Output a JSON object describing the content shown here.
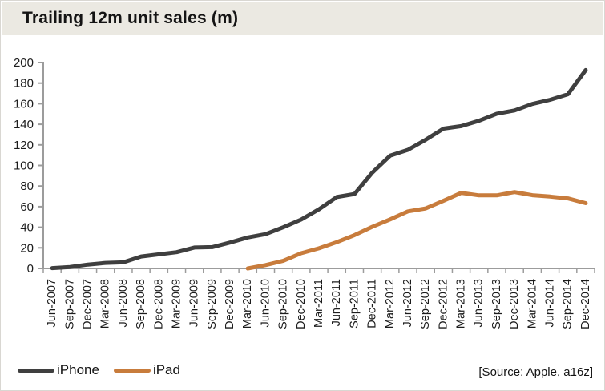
{
  "header": {
    "title": "Trailing 12m unit sales (m)"
  },
  "source_note": "[Source: Apple, a16z]",
  "legend": {
    "items": [
      {
        "label": "iPhone",
        "color": "#3f3f3f"
      },
      {
        "label": "iPad",
        "color": "#c87c3c"
      }
    ]
  },
  "colors": {
    "titlebar_bg": "#ebe9e2",
    "axis": "#9c9c9c",
    "iphone_line": "#3f3f3f",
    "ipad_line": "#c87c3c"
  },
  "chart_data": {
    "type": "line",
    "title": "Trailing 12m unit sales (m)",
    "xlabel": "",
    "ylabel": "",
    "ylim": [
      0,
      200
    ],
    "ytick_step": 20,
    "grid": false,
    "legend_position": "bottom-left",
    "categories": [
      "Jun-2007",
      "Sep-2007",
      "Dec-2007",
      "Mar-2008",
      "Jun-2008",
      "Sep-2008",
      "Dec-2008",
      "Mar-2009",
      "Jun-2009",
      "Sep-2009",
      "Dec-2009",
      "Mar-2010",
      "Jun-2010",
      "Sep-2010",
      "Dec-2010",
      "Mar-2011",
      "Jun-2011",
      "Sep-2011",
      "Dec-2011",
      "Mar-2012",
      "Jun-2012",
      "Sep-2012",
      "Dec-2012",
      "Mar-2013",
      "Jun-2013",
      "Sep-2013",
      "Dec-2013",
      "Mar-2014",
      "Jun-2014",
      "Sep-2014",
      "Dec-2014"
    ],
    "series": [
      {
        "name": "iPhone",
        "color": "#3f3f3f",
        "start_index": 0,
        "values": [
          0.3,
          1.4,
          3.7,
          5.4,
          5.9,
          11.6,
          13.7,
          15.8,
          20.3,
          20.7,
          25.1,
          30.1,
          33.3,
          40.0,
          47.5,
          57.4,
          69.3,
          72.3,
          93.1,
          109.5,
          115.2,
          125.0,
          135.8,
          138.2,
          143.4,
          150.3,
          153.5,
          159.8,
          163.8,
          169.2,
          192.7
        ]
      },
      {
        "name": "iPad",
        "color": "#c87c3c",
        "start_index": 11,
        "values": [
          0.0,
          3.3,
          7.5,
          14.8,
          19.5,
          25.5,
          32.4,
          40.5,
          47.6,
          55.4,
          58.3,
          65.7,
          73.4,
          71.0,
          71.0,
          74.2,
          71.1,
          69.8,
          68.0,
          63.4
        ]
      }
    ]
  }
}
